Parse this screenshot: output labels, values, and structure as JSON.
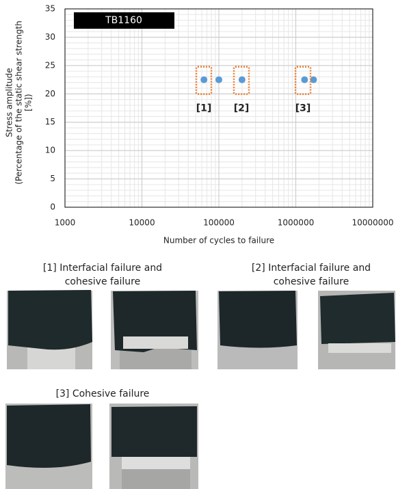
{
  "chart_data": {
    "type": "scatter",
    "x_label": "Number of cycles to failure",
    "y_label": [
      "Stress amplitude",
      "(Percentage of the static shear strength",
      "[%])"
    ],
    "xscale": "log",
    "xlim": [
      1000,
      10000000
    ],
    "xticks": [
      1000,
      10000,
      100000,
      1000000,
      10000000
    ],
    "ylim": [
      0,
      35
    ],
    "yticks": [
      0,
      5,
      10,
      15,
      20,
      25,
      30,
      35
    ],
    "grid": true,
    "minor_grid": true,
    "legend": "upper left",
    "series": [
      {
        "name": "TB1160",
        "color": "#5b9bd5",
        "x": [
          64000,
          100000,
          200000,
          1300000,
          1700000
        ],
        "values": [
          22.5,
          22.5,
          22.5,
          22.5,
          22.5
        ]
      }
    ],
    "annotations": [
      {
        "text": "[1]",
        "color": "#ed7d31"
      },
      {
        "text": "[2]",
        "color": "#ed7d31"
      },
      {
        "text": "[3]",
        "color": "#ed7d31"
      }
    ]
  },
  "captions": [
    [
      "[1] Interfacial failure and",
      "cohesive failure"
    ],
    [
      "[2] Interfacial failure and",
      "cohesive failure"
    ],
    [
      "[3] Cohesive failure"
    ]
  ]
}
